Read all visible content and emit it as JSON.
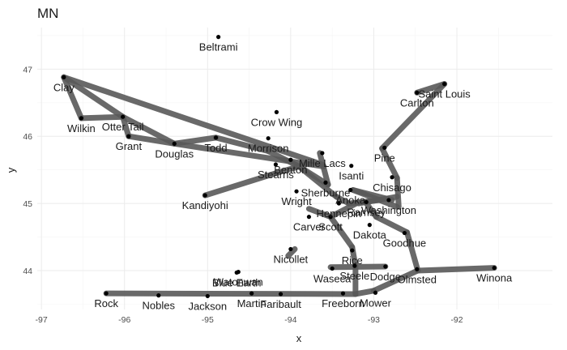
{
  "chart_data": {
    "type": "scatter",
    "title": "MN",
    "xlabel": "x",
    "ylabel": "y",
    "xlim": [
      -97.05,
      -90.85
    ],
    "ylim": [
      43.42,
      47.62
    ],
    "x_ticks": [
      -97,
      -96,
      -95,
      -94,
      -93,
      -92
    ],
    "y_ticks": [
      44,
      45,
      46,
      47
    ],
    "grid": true,
    "points": [
      {
        "name": "Beltrami",
        "x": -94.87,
        "y": 47.48
      },
      {
        "name": "Clay",
        "x": -96.73,
        "y": 46.88
      },
      {
        "name": "Saint Louis",
        "x": -92.15,
        "y": 46.78
      },
      {
        "name": "Carlton",
        "x": -92.48,
        "y": 46.65
      },
      {
        "name": "Crow Wing",
        "x": -94.17,
        "y": 46.36
      },
      {
        "name": "Otter Tail",
        "x": -96.02,
        "y": 46.29
      },
      {
        "name": "Wilkin",
        "x": -96.52,
        "y": 46.27
      },
      {
        "name": "Grant",
        "x": -95.95,
        "y": 46.0
      },
      {
        "name": "Douglas",
        "x": -95.4,
        "y": 45.89
      },
      {
        "name": "Todd",
        "x": -94.9,
        "y": 45.98
      },
      {
        "name": "Morrison",
        "x": -94.27,
        "y": 45.97
      },
      {
        "name": "Pine",
        "x": -92.87,
        "y": 45.83
      },
      {
        "name": "Mille Lacs",
        "x": -93.62,
        "y": 45.75
      },
      {
        "name": "Benton",
        "x": -94.0,
        "y": 45.65
      },
      {
        "name": "Stearns",
        "x": -94.18,
        "y": 45.58
      },
      {
        "name": "Isanti",
        "x": -93.27,
        "y": 45.56
      },
      {
        "name": "Chisago",
        "x": -92.78,
        "y": 45.39
      },
      {
        "name": "Sherburne",
        "x": -93.58,
        "y": 45.31
      },
      {
        "name": "Kandiyohi",
        "x": -95.03,
        "y": 45.12
      },
      {
        "name": "Wright",
        "x": -93.93,
        "y": 45.18
      },
      {
        "name": "Anoka",
        "x": -93.28,
        "y": 45.2
      },
      {
        "name": "Washington",
        "x": -92.82,
        "y": 45.05
      },
      {
        "name": "Ramsey",
        "x": -93.09,
        "y": 45.02
      },
      {
        "name": "Hennepin",
        "x": -93.42,
        "y": 45.0
      },
      {
        "name": "Carver",
        "x": -93.78,
        "y": 44.8
      },
      {
        "name": "Scott",
        "x": -93.52,
        "y": 44.8
      },
      {
        "name": "Dakota",
        "x": -93.05,
        "y": 44.68
      },
      {
        "name": "Goodhue",
        "x": -92.63,
        "y": 44.56
      },
      {
        "name": "Nicollet",
        "x": -94.0,
        "y": 44.32
      },
      {
        "name": "Blue Earth",
        "x": -94.65,
        "y": 43.97
      },
      {
        "name": "Rice",
        "x": -93.26,
        "y": 44.3
      },
      {
        "name": "Waseca",
        "x": -93.5,
        "y": 44.03
      },
      {
        "name": "Steele",
        "x": -93.23,
        "y": 44.07
      },
      {
        "name": "Dodge",
        "x": -92.86,
        "y": 44.06
      },
      {
        "name": "Olmsted",
        "x": -92.48,
        "y": 44.02
      },
      {
        "name": "Winona",
        "x": -91.55,
        "y": 44.04
      },
      {
        "name": "Watonwan",
        "x": -94.63,
        "y": 43.98
      },
      {
        "name": "Rock",
        "x": -96.22,
        "y": 43.66
      },
      {
        "name": "Nobles",
        "x": -95.59,
        "y": 43.63
      },
      {
        "name": "Jackson",
        "x": -95.0,
        "y": 43.62
      },
      {
        "name": "Martin",
        "x": -94.47,
        "y": 43.66
      },
      {
        "name": "Faribault",
        "x": -94.12,
        "y": 43.65
      },
      {
        "name": "Freeborn",
        "x": -93.37,
        "y": 43.66
      },
      {
        "name": "Mower",
        "x": -92.98,
        "y": 43.67
      }
    ],
    "edges": [
      [
        -96.73,
        46.88,
        -96.52,
        46.27
      ],
      [
        -96.73,
        46.88,
        -96.02,
        46.29
      ],
      [
        -96.73,
        46.88,
        -93.62,
        45.58
      ],
      [
        -96.52,
        46.27,
        -96.02,
        46.29
      ],
      [
        -96.02,
        46.29,
        -95.95,
        46.0
      ],
      [
        -96.02,
        46.29,
        -95.4,
        45.89
      ],
      [
        -95.95,
        46.0,
        -95.4,
        45.89
      ],
      [
        -95.4,
        45.89,
        -94.9,
        45.98
      ],
      [
        -95.4,
        45.89,
        -93.6,
        45.55
      ],
      [
        -94.9,
        45.98,
        -94.27,
        45.78
      ],
      [
        -94.27,
        45.78,
        -93.9,
        45.55
      ],
      [
        -95.03,
        45.12,
        -94.18,
        45.45
      ],
      [
        -94.18,
        45.45,
        -93.82,
        45.58
      ],
      [
        -93.9,
        45.55,
        -93.55,
        45.28
      ],
      [
        -93.55,
        45.28,
        -93.65,
        45.75
      ],
      [
        -93.9,
        45.55,
        -93.45,
        45.1
      ],
      [
        -93.45,
        45.1,
        -93.3,
        45.0
      ],
      [
        -93.3,
        45.0,
        -92.92,
        45.05
      ],
      [
        -93.25,
        45.2,
        -92.78,
        45.05
      ],
      [
        -93.25,
        45.2,
        -92.72,
        44.95
      ],
      [
        -93.18,
        45.0,
        -92.72,
        45.1
      ],
      [
        -92.72,
        45.38,
        -92.9,
        45.82
      ],
      [
        -92.72,
        45.38,
        -92.7,
        44.95
      ],
      [
        -92.9,
        45.82,
        -92.15,
        46.78
      ],
      [
        -92.48,
        46.65,
        -92.15,
        46.78
      ],
      [
        -93.52,
        44.8,
        -93.18,
        45.02
      ],
      [
        -93.52,
        44.8,
        -93.78,
        44.92
      ],
      [
        -93.52,
        44.8,
        -93.26,
        44.35
      ],
      [
        -93.26,
        44.35,
        -93.22,
        44.07
      ],
      [
        -93.22,
        44.07,
        -93.22,
        43.65
      ],
      [
        -93.22,
        43.65,
        -93.0,
        43.7
      ],
      [
        -93.0,
        43.7,
        -92.47,
        44.0
      ],
      [
        -92.47,
        44.0,
        -91.55,
        44.04
      ],
      [
        -92.47,
        44.0,
        -92.6,
        44.57
      ],
      [
        -92.6,
        44.57,
        -92.97,
        44.8
      ],
      [
        -92.97,
        44.8,
        -93.1,
        45.02
      ],
      [
        -93.52,
        44.05,
        -92.86,
        44.06
      ],
      [
        -94.03,
        44.22,
        -93.95,
        44.32
      ],
      [
        -96.22,
        43.66,
        -93.22,
        43.65
      ]
    ]
  }
}
